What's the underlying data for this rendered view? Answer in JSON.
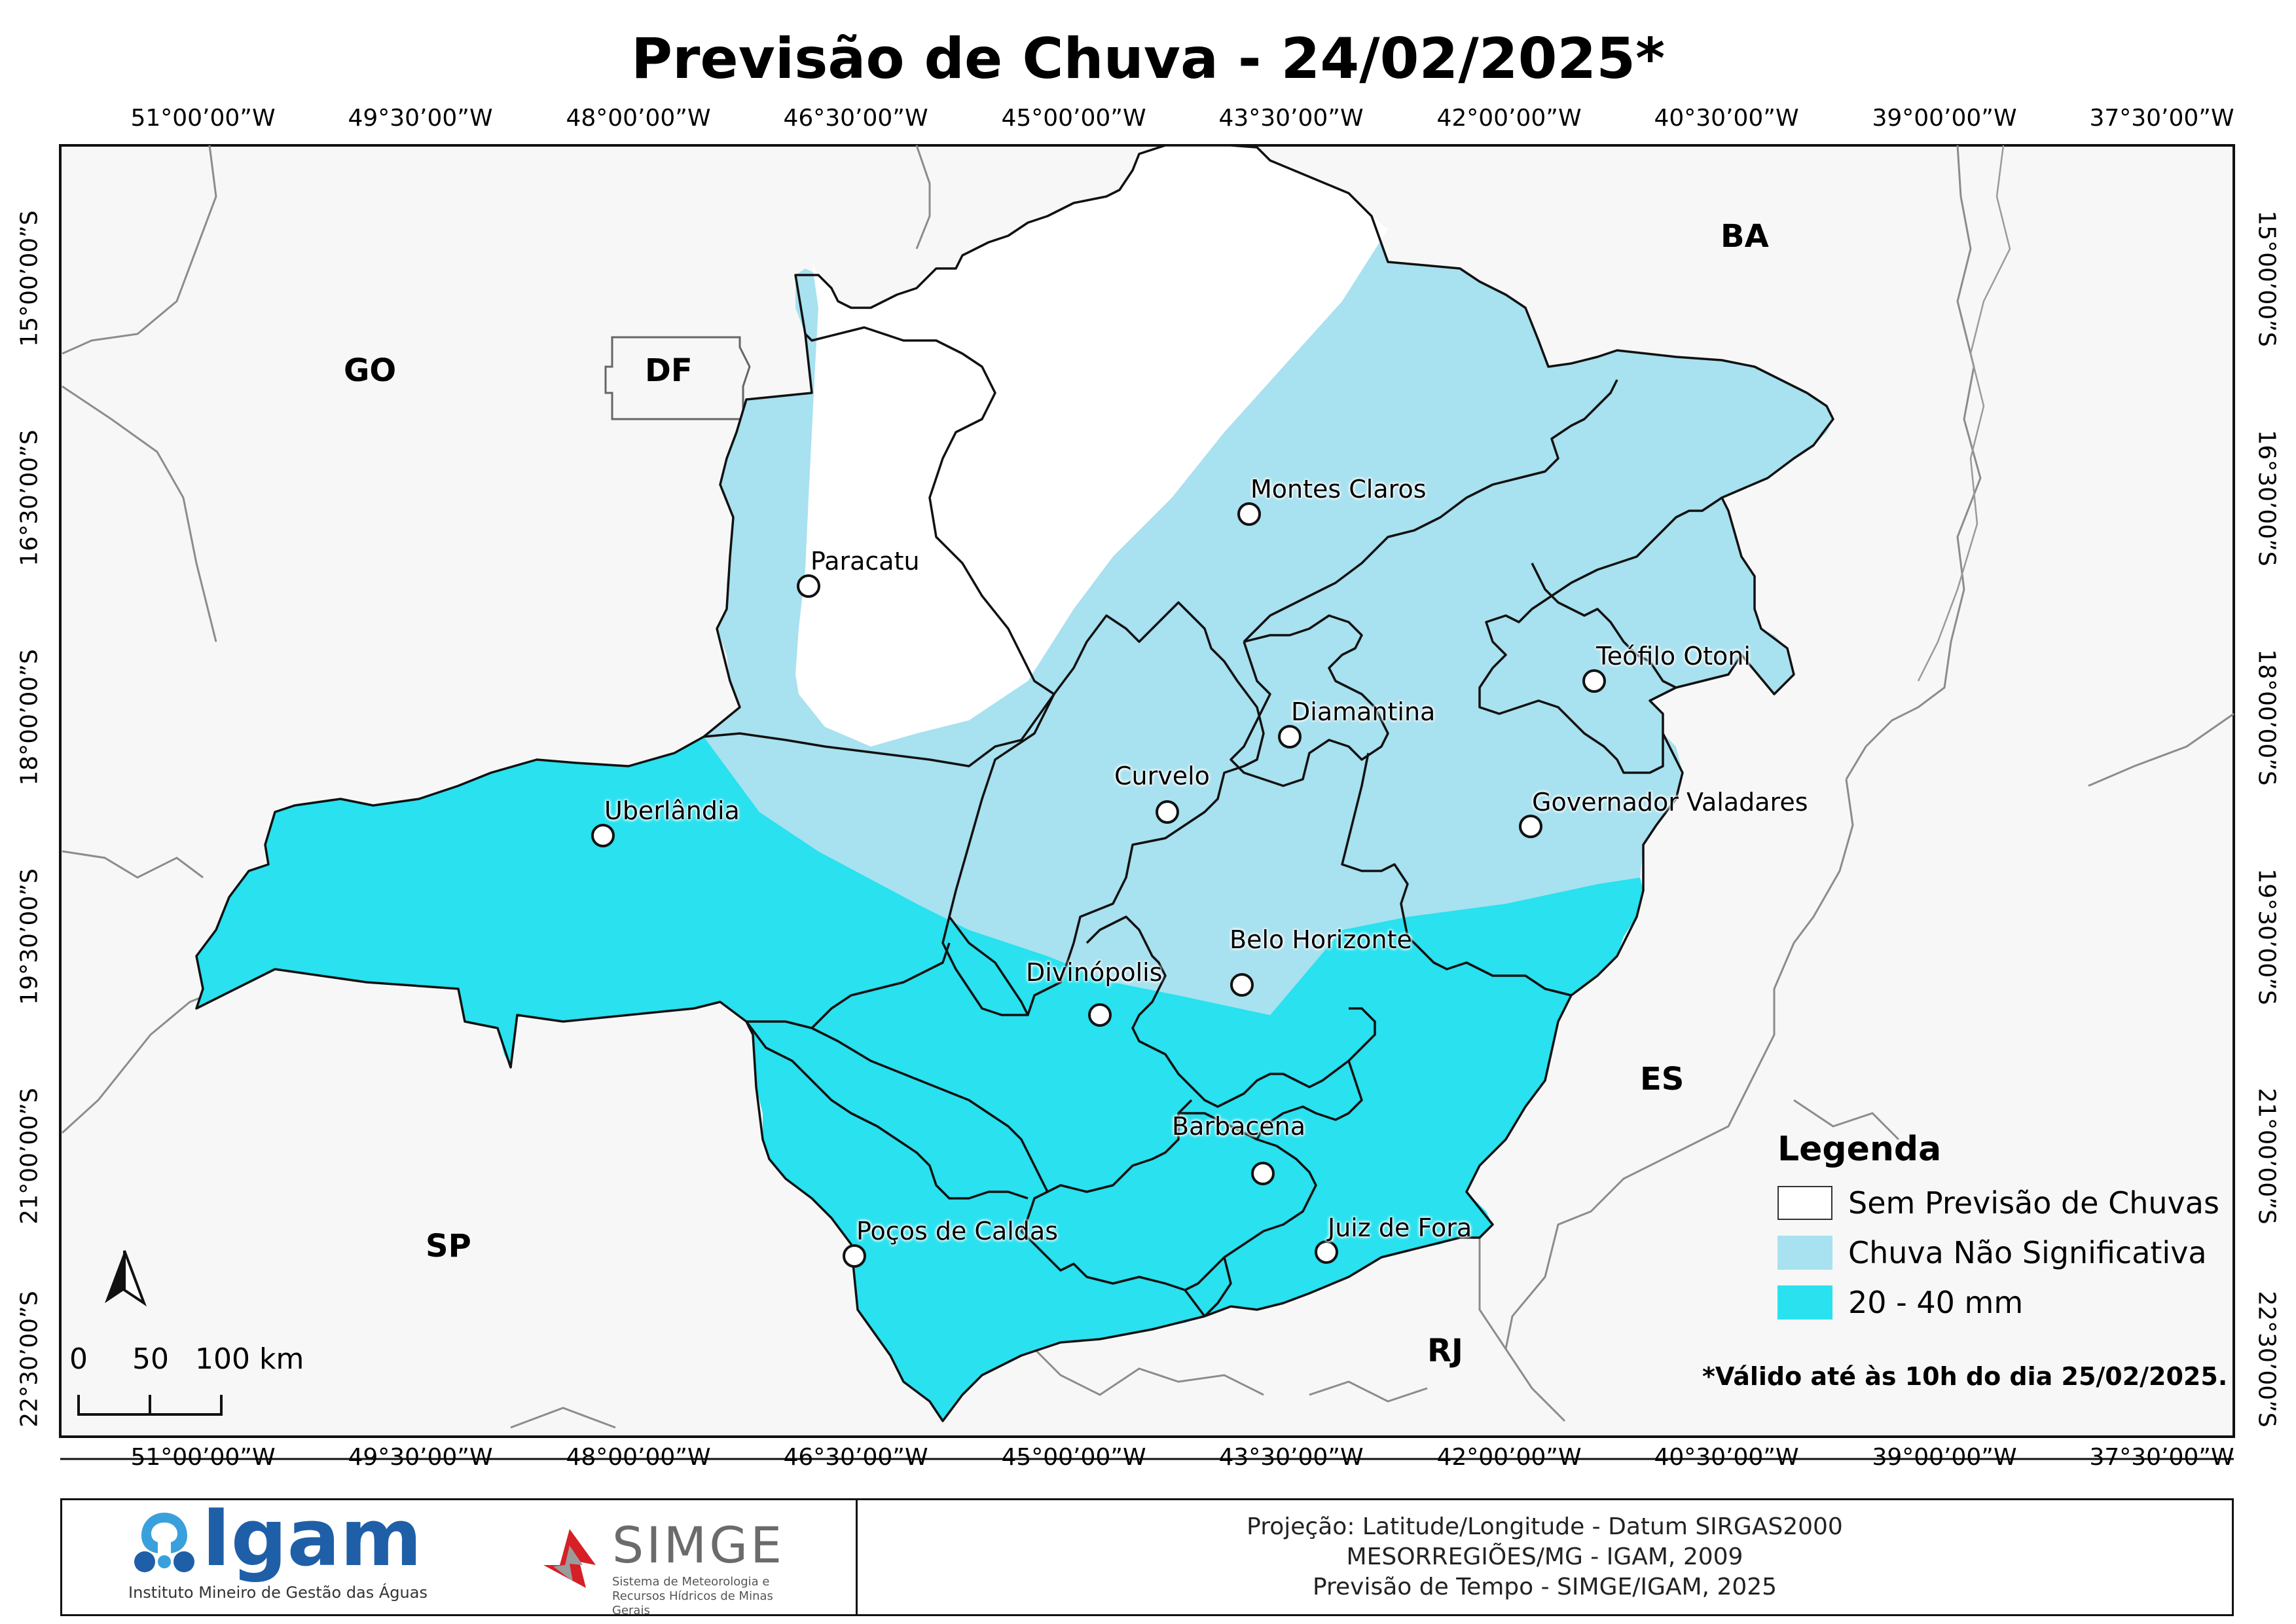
{
  "title": "Previsão de Chuva - 24/02/2025*",
  "coordinates": {
    "longitude_labels": [
      "51°00’00”W",
      "49°30’00”W",
      "48°00’00”W",
      "46°30’00”W",
      "45°00’00”W",
      "43°30’00”W",
      "42°00’00”W",
      "40°30’00”W",
      "39°00’00”W",
      "37°30’00”W"
    ],
    "latitude_labels": [
      "15°00’00”S",
      "16°30’00”S",
      "18°00’00”S",
      "19°30’00”S",
      "21°00’00”S",
      "22°30’00”S"
    ]
  },
  "states": {
    "go": "GO",
    "df": "DF",
    "ba": "BA",
    "es": "ES",
    "sp": "SP",
    "rj": "RJ"
  },
  "cities": [
    {
      "name": "Montes Claros"
    },
    {
      "name": "Paracatu"
    },
    {
      "name": "Teófilo Otoni"
    },
    {
      "name": "Diamantina"
    },
    {
      "name": "Curvelo"
    },
    {
      "name": "Governador Valadares"
    },
    {
      "name": "Uberlândia"
    },
    {
      "name": "Belo Horizonte"
    },
    {
      "name": "Divinópolis"
    },
    {
      "name": "Barbacena"
    },
    {
      "name": "Poços de Caldas"
    },
    {
      "name": "Juiz de Fora"
    }
  ],
  "legend": {
    "title": "Legenda",
    "items": [
      {
        "label": "Sem Previsão de Chuvas",
        "color": "#ffffff"
      },
      {
        "label": "Chuva Não Significativa",
        "color": "#a8e1ef"
      },
      {
        "label": "20 - 40 mm",
        "color": "#29e1ef"
      }
    ]
  },
  "colors": {
    "background_map": "#f7f7f7",
    "no_rain": "#ffffff",
    "light_rain": "#a8e1ef",
    "rain_20_40": "#29e1ef",
    "border_state": "#8c8c8c",
    "border_meso": "#111111"
  },
  "validity_note": "*Válido até às 10h do dia 25/02/2025.",
  "scale_bar": {
    "labels": [
      "0",
      "50",
      "100 km"
    ]
  },
  "footer": {
    "igam": {
      "name": "Igam",
      "subtitle": "Instituto Mineiro de Gestão das Águas"
    },
    "simge": {
      "name": "SIMGE",
      "subtitle": "Sistema de Meteorologia e Recursos Hídricos de Minas Gerais"
    },
    "credits": [
      "Projeção: Latitude/Longitude - Datum SIRGAS2000",
      "MESORREGIÕES/MG - IGAM, 2009",
      "Previsão de Tempo - SIMGE/IGAM, 2025"
    ]
  }
}
